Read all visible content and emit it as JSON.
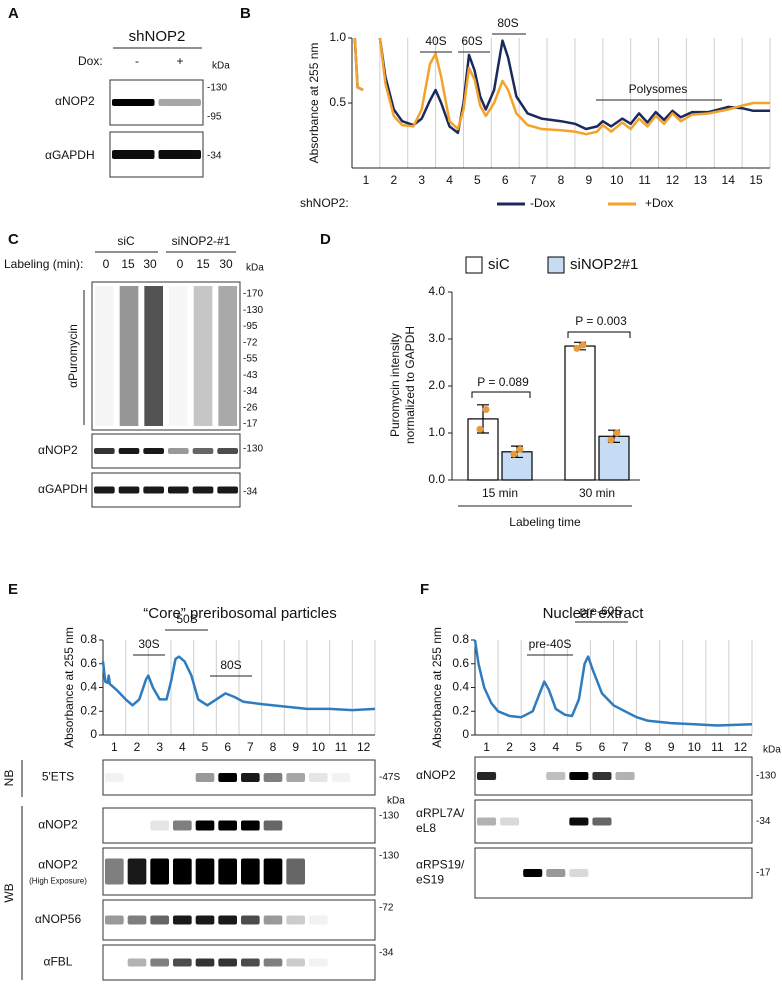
{
  "panel_labels": {
    "a": "A",
    "b": "B",
    "c": "C",
    "d": "D",
    "e": "E",
    "f": "F"
  },
  "panel_a": {
    "title": "shNOP2",
    "dox_label": "Dox:",
    "lanes": [
      "-",
      "+"
    ],
    "kda": "kDa",
    "blots": [
      {
        "label": "αNOP2",
        "markers": [
          "-130",
          "-95"
        ]
      },
      {
        "label": "αGAPDH",
        "markers": [
          "-34"
        ]
      }
    ]
  },
  "panel_c": {
    "groups": [
      "siC",
      "siNOP2-#1"
    ],
    "labeling_label": "Labeling (min):",
    "lanes": [
      "0",
      "15",
      "30",
      "0",
      "15",
      "30"
    ],
    "kda": "kDa",
    "blots": [
      {
        "label": "αPuromycin",
        "markers": [
          "-170",
          "-130",
          "-95",
          "-72",
          "-55",
          "-43",
          "-34",
          "-26",
          "-17"
        ]
      },
      {
        "label": "αNOP2",
        "markers": [
          "-130"
        ]
      },
      {
        "label": "αGAPDH",
        "markers": [
          "-34"
        ]
      }
    ]
  },
  "chart_data": [
    {
      "type": "line",
      "ylabel": "Absorbance at 255 nm",
      "legend_title": "shNOP2:",
      "peak_labels": [
        "40S",
        "60S",
        "80S",
        "Polysomes"
      ],
      "categories": [
        "1",
        "2",
        "3",
        "4",
        "5",
        "6",
        "7",
        "8",
        "9",
        "10",
        "11",
        "12",
        "13",
        "14",
        "15"
      ],
      "xlim": [
        0,
        15
      ],
      "ylim": [
        0,
        1.0
      ],
      "yticks": [
        0.5,
        {
          "value": 1.0,
          "label": "1.0"
        }
      ],
      "x": [
        0.1,
        0.2,
        0.4,
        0.7,
        1.0,
        1.2,
        1.5,
        1.8,
        2.2,
        2.5,
        2.8,
        3.0,
        3.2,
        3.5,
        3.8,
        4.0,
        4.2,
        4.4,
        4.6,
        4.8,
        5.1,
        5.4,
        5.6,
        5.9,
        6.3,
        6.8,
        7.5,
        8.0,
        8.4,
        8.8,
        9.0,
        9.3,
        9.7,
        10.0,
        10.3,
        10.6,
        10.9,
        11.2,
        11.5,
        11.8,
        12.2,
        12.8,
        13.5,
        14.0,
        14.4,
        15.0
      ],
      "series": [
        {
          "name": "-Dox",
          "color": "#1b2a5c",
          "values": [
            1.0,
            0.62,
            0.6,
            null,
            1.0,
            0.7,
            0.45,
            0.36,
            0.33,
            0.38,
            0.52,
            0.6,
            0.5,
            0.32,
            0.27,
            0.5,
            0.87,
            0.75,
            0.55,
            0.45,
            0.6,
            0.98,
            0.85,
            0.55,
            0.42,
            0.38,
            0.36,
            0.34,
            0.3,
            0.32,
            0.36,
            0.32,
            0.38,
            0.34,
            0.42,
            0.35,
            0.43,
            0.37,
            0.44,
            0.39,
            0.43,
            0.43,
            0.47,
            0.46,
            0.44,
            0.44
          ]
        },
        {
          "name": "+Dox",
          "color": "#f4a32a",
          "values": [
            1.0,
            0.62,
            0.6,
            null,
            1.0,
            0.65,
            0.4,
            0.33,
            0.32,
            0.45,
            0.8,
            0.88,
            0.7,
            0.36,
            0.3,
            0.45,
            0.77,
            0.68,
            0.48,
            0.4,
            0.5,
            0.67,
            0.6,
            0.42,
            0.33,
            0.3,
            0.29,
            0.28,
            0.26,
            0.28,
            0.33,
            0.28,
            0.35,
            0.3,
            0.38,
            0.32,
            0.4,
            0.34,
            0.42,
            0.36,
            0.41,
            0.42,
            0.45,
            0.48,
            0.5,
            0.5
          ]
        }
      ]
    },
    {
      "type": "bar",
      "ylabel_lines": [
        "Puromycin intensity",
        "normalized to GAPDH"
      ],
      "xlabel": "Labeling time",
      "categories": [
        "15 min",
        "30 min"
      ],
      "ylim": [
        0,
        4.0
      ],
      "yticks": [
        {
          "value": 0,
          "label": "0.0"
        },
        {
          "value": 1,
          "label": "1.0"
        },
        {
          "value": 2,
          "label": "2.0"
        },
        {
          "value": 3,
          "label": "3.0"
        },
        {
          "value": 4,
          "label": "4.0"
        }
      ],
      "annotations": [
        "P = 0.089",
        "P = 0.003"
      ],
      "point_color": "#e89a3c",
      "series": [
        {
          "name": "siC",
          "color": "#ffffff",
          "values": [
            1.3,
            2.85
          ],
          "errors": [
            0.3,
            0.08
          ],
          "points": [
            [
              1.08,
              1.5
            ],
            [
              2.8,
              2.87
            ]
          ]
        },
        {
          "name": "siNOP2#1",
          "color": "#c6dcf4",
          "values": [
            0.6,
            0.93
          ],
          "errors": [
            0.12,
            0.13
          ],
          "points": [
            [
              0.55,
              0.65
            ],
            [
              0.85,
              1.0
            ]
          ]
        }
      ]
    },
    {
      "type": "line",
      "title": "“Core” preribosomal particles",
      "ylabel": "Absorbance at 255 nm",
      "peak_labels": [
        "30S",
        "50S",
        "80S"
      ],
      "categories": [
        "1",
        "2",
        "3",
        "4",
        "5",
        "6",
        "7",
        "8",
        "9",
        "10",
        "11",
        "12"
      ],
      "xlim": [
        0,
        12
      ],
      "ylim": [
        0,
        0.8
      ],
      "yticks": [
        0,
        0.2,
        0.4,
        0.6,
        0.8
      ],
      "x": [
        0,
        0.1,
        0.2,
        0.25,
        0.3,
        0.6,
        1.0,
        1.3,
        1.6,
        1.9,
        2.0,
        2.2,
        2.5,
        2.8,
        3.0,
        3.2,
        3.35,
        3.6,
        3.9,
        4.2,
        4.6,
        5.0,
        5.4,
        5.8,
        6.2,
        7.0,
        8.0,
        9.0,
        10.0,
        11.0,
        12.0
      ],
      "series": [
        {
          "color": "#2f7bbf",
          "values": [
            0.62,
            0.45,
            0.44,
            0.5,
            0.43,
            0.38,
            0.3,
            0.25,
            0.3,
            0.47,
            0.5,
            0.4,
            0.3,
            0.3,
            0.45,
            0.64,
            0.66,
            0.62,
            0.5,
            0.3,
            0.25,
            0.3,
            0.35,
            0.32,
            0.28,
            0.26,
            0.24,
            0.22,
            0.22,
            0.21,
            0.22
          ]
        }
      ]
    },
    {
      "type": "line",
      "title": "Nuclear extract",
      "ylabel": "Absorbance at 255 nm",
      "peak_labels": [
        "pre-40S",
        "pre-60S"
      ],
      "categories": [
        "1",
        "2",
        "3",
        "4",
        "5",
        "6",
        "7",
        "8",
        "9",
        "10",
        "11",
        "12"
      ],
      "xlim": [
        0,
        12
      ],
      "ylim": [
        0,
        0.8
      ],
      "yticks": [
        0,
        0.2,
        0.4,
        0.6,
        0.8
      ],
      "x": [
        0,
        0.15,
        0.4,
        0.7,
        1.0,
        1.5,
        2.0,
        2.5,
        2.8,
        3.0,
        3.2,
        3.5,
        3.9,
        4.2,
        4.5,
        4.75,
        4.9,
        5.1,
        5.5,
        6.0,
        6.5,
        7.0,
        7.5,
        8.5,
        9.5,
        10.5,
        12
      ],
      "series": [
        {
          "color": "#2f7bbf",
          "values": [
            0.8,
            0.6,
            0.4,
            0.27,
            0.2,
            0.16,
            0.15,
            0.2,
            0.35,
            0.45,
            0.38,
            0.22,
            0.17,
            0.16,
            0.3,
            0.6,
            0.66,
            0.55,
            0.35,
            0.25,
            0.2,
            0.15,
            0.12,
            0.1,
            0.09,
            0.08,
            0.09
          ]
        }
      ]
    }
  ],
  "panel_e_blots": {
    "nb_label": "NB",
    "wb_label": "WB",
    "kda": "kDa",
    "blots": [
      {
        "label": "5'ETS",
        "markers": [
          "-47S"
        ]
      },
      {
        "label": "αNOP2",
        "markers": [
          "-130"
        ]
      },
      {
        "label": "αNOP2",
        "sublabel": "(High Exposure)",
        "markers": [
          "-130"
        ]
      },
      {
        "label": "αNOP56",
        "markers": [
          "-72"
        ]
      },
      {
        "label": "αFBL",
        "markers": [
          "-34"
        ]
      }
    ]
  },
  "panel_f_blots": {
    "kda": "kDa",
    "blots": [
      {
        "label_lines": [
          "αNOP2"
        ],
        "markers": [
          "-130"
        ]
      },
      {
        "label_lines": [
          "αRPL7A/",
          "eL8"
        ],
        "markers": [
          "-34"
        ]
      },
      {
        "label_lines": [
          "αRPS19/",
          "eS19"
        ],
        "markers": [
          "-17"
        ]
      }
    ]
  }
}
